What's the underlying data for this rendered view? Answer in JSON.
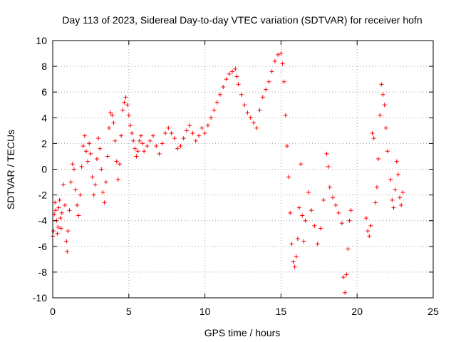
{
  "chart_data": {
    "type": "scatter",
    "title": "Day 113 of 2023, Sidereal Day-to-day VTEC variation (SDTVAR) for receiver hofn",
    "xlabel": "GPS time / hours",
    "ylabel": "SDTVAR / TECUs",
    "xlim": [
      0,
      25
    ],
    "ylim": [
      -10,
      10
    ],
    "x_ticks": [
      0,
      5,
      10,
      15,
      20,
      25
    ],
    "y_ticks": [
      -10,
      -8,
      -6,
      -4,
      -2,
      0,
      2,
      4,
      6,
      8,
      10
    ],
    "grid": true,
    "marker": "plus",
    "color": "#ff0000",
    "series": [
      {
        "values": [
          [
            0.0,
            -5.2
          ],
          [
            0.05,
            -4.8
          ],
          [
            0.1,
            -3.5
          ],
          [
            0.15,
            -2.6
          ],
          [
            0.2,
            -3.2
          ],
          [
            0.25,
            -4.0
          ],
          [
            0.3,
            -5.0
          ],
          [
            0.35,
            -4.5
          ],
          [
            0.4,
            -3.0
          ],
          [
            0.45,
            -2.4
          ],
          [
            0.5,
            -3.8
          ],
          [
            0.55,
            -4.6
          ],
          [
            0.6,
            -3.4
          ],
          [
            0.7,
            -1.2
          ],
          [
            0.8,
            -2.8
          ],
          [
            0.9,
            -5.6
          ],
          [
            0.95,
            -6.4
          ],
          [
            1.0,
            -4.8
          ],
          [
            1.1,
            -3.2
          ],
          [
            1.2,
            -1.0
          ],
          [
            1.3,
            0.4
          ],
          [
            1.4,
            0.0
          ],
          [
            1.5,
            -1.6
          ],
          [
            1.6,
            -2.8
          ],
          [
            1.7,
            -3.6
          ],
          [
            1.8,
            -2.0
          ],
          [
            1.9,
            0.2
          ],
          [
            2.0,
            1.8
          ],
          [
            2.1,
            2.6
          ],
          [
            2.2,
            1.4
          ],
          [
            2.3,
            0.6
          ],
          [
            2.4,
            2.0
          ],
          [
            2.5,
            1.2
          ],
          [
            2.6,
            -0.6
          ],
          [
            2.7,
            -2.0
          ],
          [
            2.8,
            -1.2
          ],
          [
            2.9,
            0.8
          ],
          [
            3.0,
            2.4
          ],
          [
            3.1,
            1.6
          ],
          [
            3.2,
            0.0
          ],
          [
            3.3,
            -1.8
          ],
          [
            3.4,
            -2.6
          ],
          [
            3.5,
            -1.0
          ],
          [
            3.6,
            1.0
          ],
          [
            3.7,
            3.2
          ],
          [
            3.8,
            4.4
          ],
          [
            3.9,
            4.2
          ],
          [
            4.0,
            3.6
          ],
          [
            4.1,
            2.2
          ],
          [
            4.2,
            0.6
          ],
          [
            4.3,
            -0.8
          ],
          [
            4.4,
            0.4
          ],
          [
            4.5,
            2.6
          ],
          [
            4.6,
            4.6
          ],
          [
            4.7,
            5.2
          ],
          [
            4.8,
            5.6
          ],
          [
            4.9,
            5.0
          ],
          [
            5.0,
            4.2
          ],
          [
            5.1,
            3.4
          ],
          [
            5.2,
            2.8
          ],
          [
            5.3,
            2.2
          ],
          [
            5.4,
            1.6
          ],
          [
            5.5,
            1.0
          ],
          [
            5.6,
            1.4
          ],
          [
            5.7,
            2.2
          ],
          [
            5.8,
            2.6
          ],
          [
            5.9,
            2.0
          ],
          [
            6.0,
            1.4
          ],
          [
            6.2,
            1.8
          ],
          [
            6.4,
            2.2
          ],
          [
            6.6,
            2.6
          ],
          [
            6.8,
            1.8
          ],
          [
            7.0,
            1.2
          ],
          [
            7.2,
            2.0
          ],
          [
            7.4,
            2.8
          ],
          [
            7.6,
            3.2
          ],
          [
            7.8,
            2.8
          ],
          [
            8.0,
            2.4
          ],
          [
            8.2,
            1.6
          ],
          [
            8.4,
            1.8
          ],
          [
            8.6,
            2.4
          ],
          [
            8.8,
            3.0
          ],
          [
            9.0,
            3.4
          ],
          [
            9.2,
            2.8
          ],
          [
            9.4,
            2.2
          ],
          [
            9.6,
            2.6
          ],
          [
            9.8,
            3.2
          ],
          [
            10.0,
            2.8
          ],
          [
            10.2,
            3.4
          ],
          [
            10.4,
            4.0
          ],
          [
            10.6,
            4.6
          ],
          [
            10.8,
            5.2
          ],
          [
            11.0,
            5.8
          ],
          [
            11.2,
            6.4
          ],
          [
            11.4,
            7.0
          ],
          [
            11.6,
            7.4
          ],
          [
            11.8,
            7.6
          ],
          [
            12.0,
            7.8
          ],
          [
            12.1,
            7.2
          ],
          [
            12.2,
            6.6
          ],
          [
            12.4,
            5.8
          ],
          [
            12.6,
            5.0
          ],
          [
            12.8,
            4.4
          ],
          [
            13.0,
            4.0
          ],
          [
            13.2,
            3.6
          ],
          [
            13.4,
            3.2
          ],
          [
            13.6,
            4.6
          ],
          [
            13.8,
            5.6
          ],
          [
            14.0,
            6.2
          ],
          [
            14.2,
            6.8
          ],
          [
            14.4,
            7.6
          ],
          [
            14.6,
            8.4
          ],
          [
            14.8,
            8.9
          ],
          [
            15.0,
            9.0
          ],
          [
            15.1,
            8.2
          ],
          [
            15.2,
            6.8
          ],
          [
            15.3,
            4.2
          ],
          [
            15.4,
            1.8
          ],
          [
            15.5,
            -0.6
          ],
          [
            15.6,
            -3.4
          ],
          [
            15.7,
            -5.8
          ],
          [
            15.8,
            -7.2
          ],
          [
            15.9,
            -7.6
          ],
          [
            16.0,
            -6.8
          ],
          [
            16.1,
            -5.4
          ],
          [
            16.2,
            -3.0
          ],
          [
            16.3,
            0.4
          ],
          [
            16.4,
            -3.6
          ],
          [
            16.5,
            -5.6
          ],
          [
            16.6,
            -4.0
          ],
          [
            16.8,
            -1.8
          ],
          [
            17.0,
            -3.2
          ],
          [
            17.2,
            -4.4
          ],
          [
            17.4,
            -5.8
          ],
          [
            17.6,
            -4.6
          ],
          [
            17.8,
            -2.4
          ],
          [
            18.0,
            1.2
          ],
          [
            18.1,
            0.2
          ],
          [
            18.2,
            -1.4
          ],
          [
            18.4,
            -2.2
          ],
          [
            18.6,
            -2.8
          ],
          [
            18.8,
            -3.4
          ],
          [
            19.0,
            -4.2
          ],
          [
            19.1,
            -8.4
          ],
          [
            19.2,
            -9.6
          ],
          [
            19.3,
            -8.2
          ],
          [
            19.4,
            -6.2
          ],
          [
            19.5,
            -4.0
          ],
          [
            19.6,
            -3.2
          ],
          [
            20.6,
            -3.8
          ],
          [
            20.7,
            -4.8
          ],
          [
            20.8,
            -5.2
          ],
          [
            20.9,
            -4.4
          ],
          [
            21.0,
            2.8
          ],
          [
            21.1,
            2.4
          ],
          [
            21.2,
            -2.6
          ],
          [
            21.3,
            -1.4
          ],
          [
            21.4,
            0.8
          ],
          [
            21.5,
            4.2
          ],
          [
            21.6,
            6.6
          ],
          [
            21.7,
            5.8
          ],
          [
            21.8,
            5.0
          ],
          [
            21.9,
            3.2
          ],
          [
            22.0,
            1.4
          ],
          [
            22.2,
            -0.8
          ],
          [
            22.3,
            -2.4
          ],
          [
            22.4,
            -3.0
          ],
          [
            22.5,
            -1.6
          ],
          [
            22.6,
            0.6
          ],
          [
            22.7,
            -0.4
          ],
          [
            22.8,
            -2.2
          ],
          [
            22.9,
            -2.8
          ],
          [
            23.0,
            -1.8
          ]
        ]
      }
    ]
  }
}
